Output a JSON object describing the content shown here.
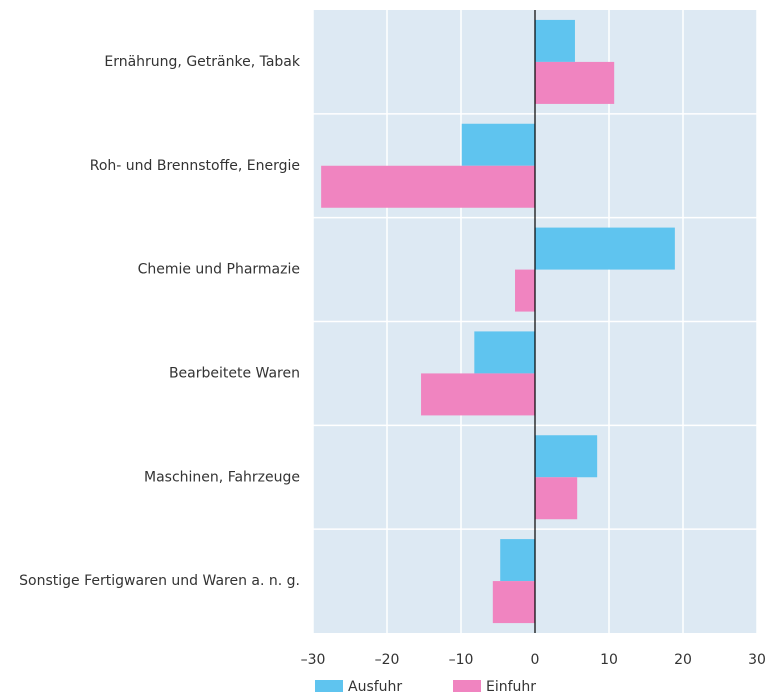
{
  "chart_data": {
    "type": "hbar",
    "categories": [
      "Ernährung, Getränke, Tabak",
      "Roh- und Brennstoffe, Energie",
      "Chemie und Pharmazie",
      "Bearbeitete Waren",
      "Maschinen, Fahrzeuge",
      "Sonstige Fertigwaren und Waren a. n. g."
    ],
    "series": [
      {
        "name": "Ausfuhr",
        "color": "#5fc4ef",
        "values": [
          5.4,
          -9.9,
          18.9,
          -8.2,
          8.4,
          -4.7
        ]
      },
      {
        "name": "Einfuhr",
        "color": "#f084c0",
        "values": [
          10.7,
          -28.9,
          -2.7,
          -15.4,
          5.7,
          -5.7
        ]
      }
    ],
    "xlim": [
      -30,
      30
    ],
    "xticks": [
      {
        "value": -30,
        "label": "–30"
      },
      {
        "value": -20,
        "label": "–20"
      },
      {
        "value": -10,
        "label": "–10"
      },
      0,
      10,
      20,
      30
    ],
    "grid": true,
    "legend": "bottom"
  }
}
